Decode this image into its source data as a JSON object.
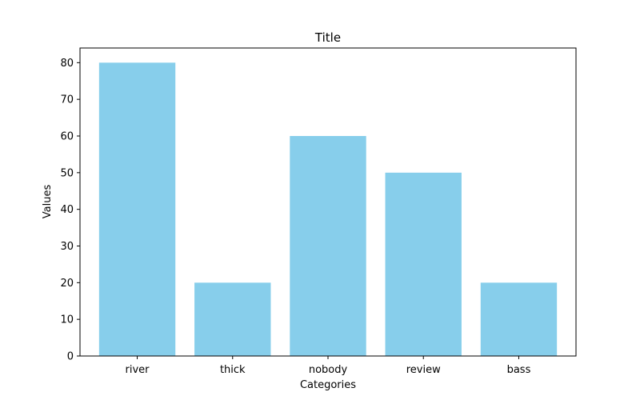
{
  "chart_data": {
    "type": "bar",
    "title": "Title",
    "xlabel": "Categories",
    "ylabel": "Values",
    "categories": [
      "river",
      "thick",
      "nobody",
      "review",
      "bass"
    ],
    "values": [
      80,
      20,
      60,
      50,
      20
    ],
    "ylim": [
      0,
      84
    ],
    "yticks": [
      0,
      10,
      20,
      30,
      40,
      50,
      60,
      70,
      80
    ],
    "bar_color": "#87CEEB",
    "grid": false,
    "legend": false
  }
}
